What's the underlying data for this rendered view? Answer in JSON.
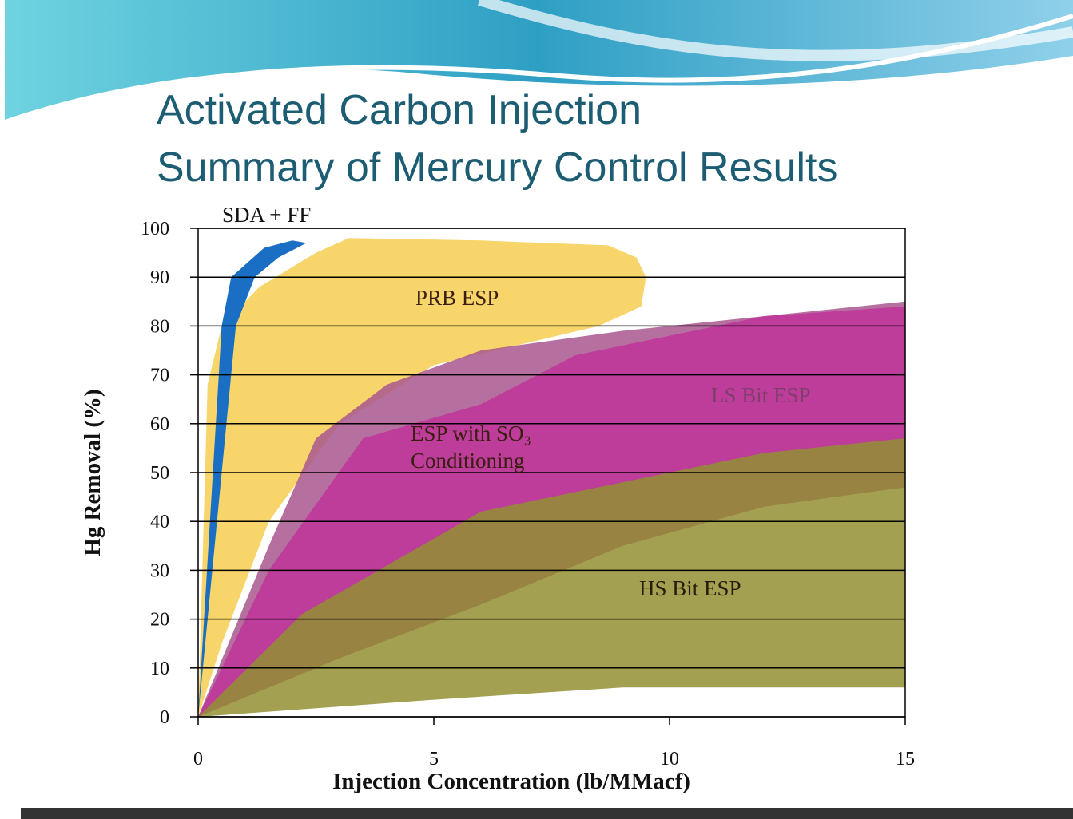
{
  "chart_data": {
    "type": "region",
    "title": "Activated Carbon Injection",
    "subtitle": "Summary of Mercury Control Results",
    "x_label": "Injection Concentration (lb/MMacf)",
    "y_label": "Hg Removal (%)",
    "xlim": [
      0,
      15
    ],
    "xticks": [
      0,
      5,
      10,
      15
    ],
    "ylim": [
      0,
      100
    ],
    "yticks": [
      0,
      10,
      20,
      30,
      40,
      50,
      60,
      70,
      80,
      90,
      100
    ],
    "grid": true,
    "series": [
      {
        "name": "PRB ESP",
        "color": "#f7d56b",
        "x": [
          0,
          0.2,
          0.5,
          1.3,
          2.5,
          3.2,
          6,
          8.7,
          9.3,
          9.5,
          9.4,
          8.5,
          5,
          3,
          1.5,
          0.5
        ],
        "y": [
          0,
          68,
          80,
          88,
          95,
          98,
          97.5,
          96.5,
          94,
          90,
          84,
          80,
          72,
          60,
          40,
          15
        ]
      },
      {
        "name": "SDA + FF",
        "color": "#1a6fc4",
        "x": [
          0,
          0.5,
          0.7,
          1.4,
          2,
          2.3,
          1.7,
          1.2,
          0.8,
          0.4
        ],
        "y": [
          0,
          80,
          90,
          96,
          97.5,
          97,
          94,
          90,
          80,
          40
        ]
      },
      {
        "name": "LS Bit ESP",
        "color": "#a9578f",
        "x": [
          0,
          1.5,
          2.5,
          4,
          6,
          9,
          12,
          15,
          15,
          12,
          9,
          6,
          3
        ],
        "y": [
          0,
          35,
          57,
          68,
          75,
          79,
          82,
          85,
          47,
          43,
          35,
          23,
          12
        ]
      },
      {
        "name": "ESP with SO₃ Conditioning",
        "color": "#c0349a",
        "x": [
          0,
          1.5,
          3.5,
          6,
          8,
          10,
          12,
          15,
          15,
          12,
          9,
          6,
          3
        ],
        "y": [
          0,
          30,
          57,
          64,
          74,
          78,
          82,
          84,
          47,
          43,
          35,
          23,
          12
        ]
      },
      {
        "name": "HS Bit ESP",
        "color": "#938f33",
        "x": [
          0,
          2.2,
          6,
          9,
          12,
          15,
          15,
          9,
          5
        ],
        "y": [
          0,
          21,
          42,
          48,
          54,
          57,
          6,
          6,
          3.5
        ]
      }
    ]
  }
}
